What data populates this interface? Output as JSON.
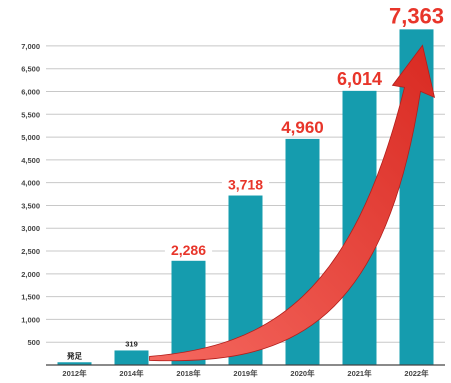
{
  "chart_data": {
    "type": "bar",
    "categories": [
      "2012年",
      "2014年",
      "2018年",
      "2019年",
      "2020年",
      "2021年",
      "2022年"
    ],
    "values": [
      60,
      319,
      2286,
      3718,
      4960,
      6014,
      7363
    ],
    "data_labels": [
      "発足",
      "319",
      "2,286",
      "3,718",
      "4,960",
      "6,014",
      "7,363"
    ],
    "y_ticks": [
      500,
      1000,
      1500,
      2000,
      2500,
      3000,
      3500,
      4000,
      4500,
      5000,
      5500,
      6000,
      6500,
      7000
    ],
    "y_tick_labels": [
      "500",
      "1,000",
      "1,500",
      "2,000",
      "2,500",
      "3,000",
      "3,500",
      "4,000",
      "4,500",
      "5,000",
      "5,500",
      "6,000",
      "6,500",
      "7,000"
    ],
    "ylim": [
      0,
      7700
    ],
    "title": "",
    "xlabel": "",
    "ylabel": "",
    "grid": true,
    "legend": "none",
    "colors": {
      "bar": "#159cae",
      "label_red": "#e8352a",
      "label_dark": "#222222",
      "arrow_light": "#f0453b",
      "arrow_dark": "#b31e1b",
      "grid": "#c8c8c8",
      "axis": "#444444"
    }
  }
}
